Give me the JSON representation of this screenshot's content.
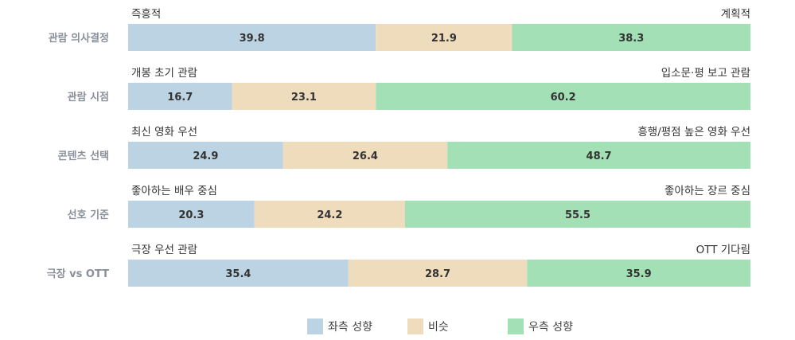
{
  "chart_data": {
    "type": "bar",
    "stacked": true,
    "orientation": "horizontal",
    "normalized": true,
    "categories": [
      "관람 의사결정",
      "관람 시점",
      "콘텐츠 선택",
      "선호 기준",
      "극장 vs OTT"
    ],
    "left_labels": [
      "즉흥적",
      "개봉 초기 관람",
      "최신 영화 우선",
      "좋아하는 배우 중심",
      "극장 우선 관람"
    ],
    "right_labels": [
      "계획적",
      "입소문·평 보고 관람",
      "흥행/평점 높은 영화 우선",
      "좋아하는 장르 중심",
      "OTT 기다림"
    ],
    "series": [
      {
        "name": "좌측 성향",
        "color": "#bcd3e3",
        "values": [
          39.8,
          16.7,
          24.9,
          20.3,
          35.4
        ]
      },
      {
        "name": "비슷",
        "color": "#eedcbc",
        "values": [
          21.9,
          23.1,
          26.4,
          24.2,
          28.7
        ]
      },
      {
        "name": "우측 성향",
        "color": "#a3e0b5",
        "values": [
          38.3,
          60.2,
          48.7,
          55.5,
          35.9
        ]
      }
    ],
    "xlim": [
      0,
      100
    ],
    "legend": "bottom",
    "grid": false
  }
}
